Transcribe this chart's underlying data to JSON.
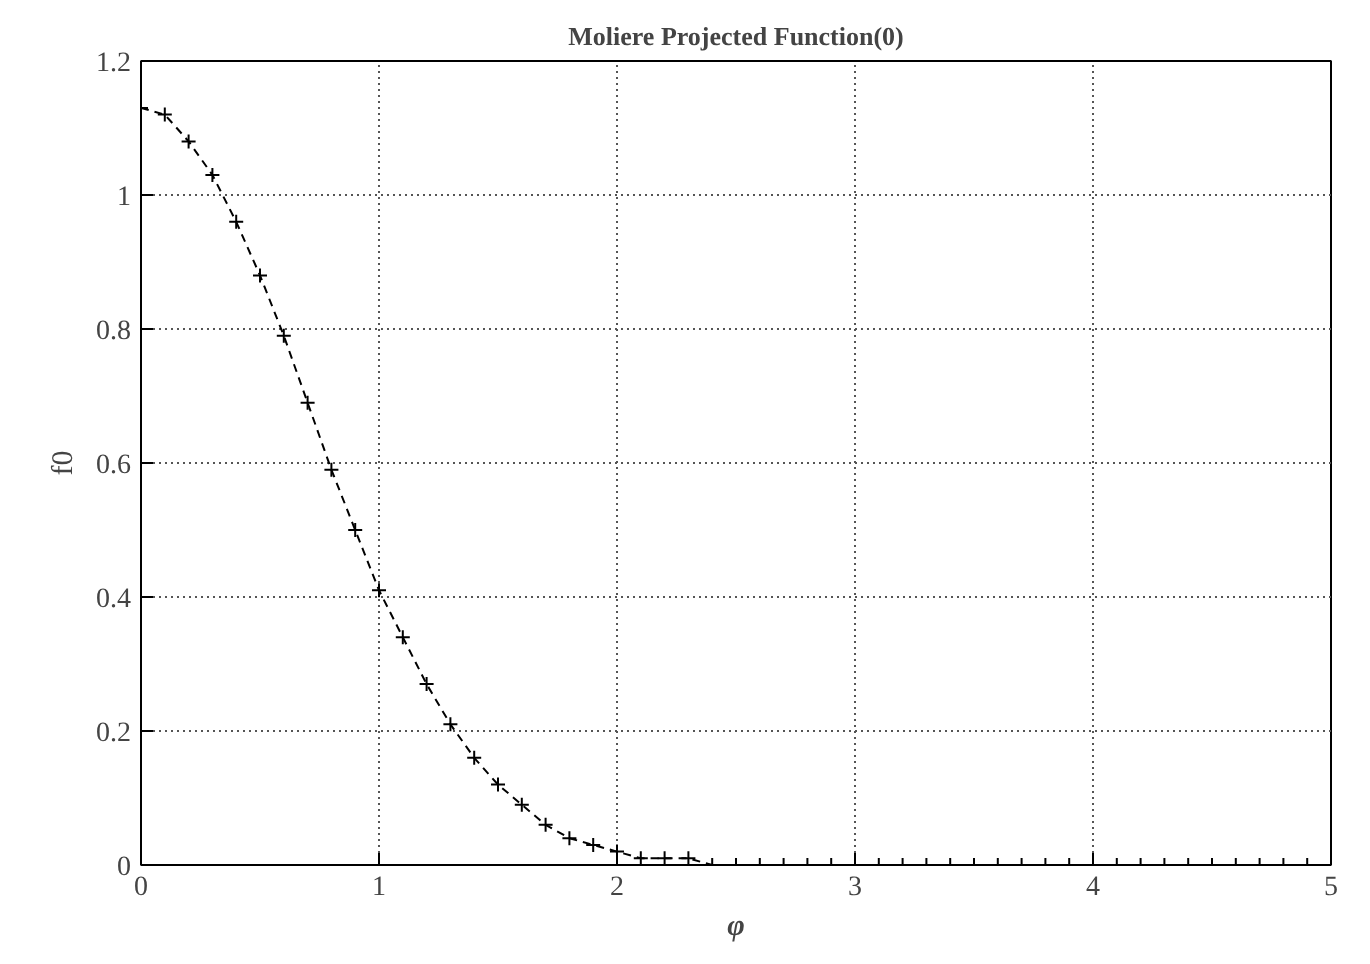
{
  "chart_data": {
    "type": "line",
    "title": "Moliere Projected Function(0)",
    "xlabel": "φ",
    "ylabel": "f0",
    "x": [
      0,
      0.1,
      0.2,
      0.3,
      0.4,
      0.5,
      0.6,
      0.7,
      0.8,
      0.9,
      1.0,
      1.1,
      1.2,
      1.3,
      1.4,
      1.5,
      1.6,
      1.7,
      1.8,
      1.9,
      2.0,
      2.1,
      2.2,
      2.3,
      2.4,
      2.5,
      2.6,
      2.7,
      2.8,
      2.9,
      3.0,
      3.1,
      3.2,
      3.3,
      3.4,
      3.5,
      3.6,
      3.7,
      3.8,
      3.9,
      4.0,
      4.1,
      4.2,
      4.3,
      4.4,
      4.5,
      4.6,
      4.7,
      4.8,
      4.9,
      5.0
    ],
    "series": [
      {
        "color": "#000000",
        "values": [
          1.13,
          1.12,
          1.08,
          1.03,
          0.96,
          0.88,
          0.79,
          0.69,
          0.59,
          0.5,
          0.41,
          0.34,
          0.27,
          0.21,
          0.16,
          0.12,
          0.09,
          0.06,
          0.04,
          0.03,
          0.02,
          0.01,
          0.01,
          0.01,
          0,
          0,
          0,
          0,
          0,
          0,
          0,
          0,
          0,
          0,
          0,
          0,
          0,
          0,
          0,
          0,
          0,
          0,
          0,
          0,
          0,
          0,
          0,
          0,
          0,
          0,
          0
        ]
      }
    ],
    "xlim": [
      0,
      5
    ],
    "ylim": [
      0,
      1.2
    ],
    "xticks": [
      0,
      1,
      2,
      3,
      4,
      5
    ],
    "yticks": [
      0,
      0.2,
      0.4,
      0.6,
      0.8,
      1,
      1.2
    ],
    "grid": true,
    "marker": "cross",
    "line_style": "dashed"
  }
}
